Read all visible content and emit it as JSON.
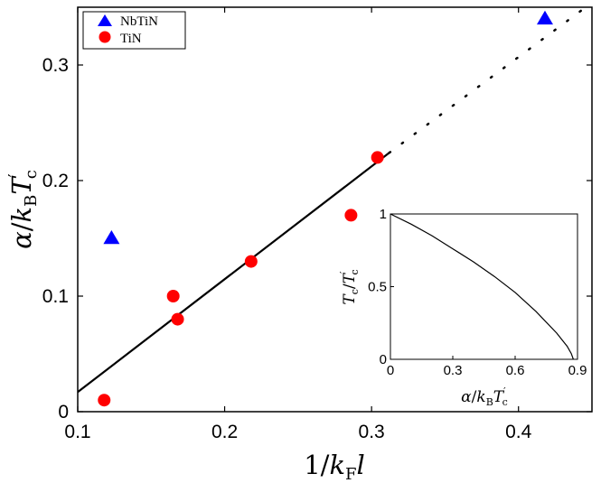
{
  "chart_data": [
    {
      "type": "scatter",
      "xlabel": "1/k_F l",
      "ylabel": "α/k_B T'_c",
      "xlim": [
        0.1,
        0.45
      ],
      "ylim": [
        0,
        0.35
      ],
      "x_ticks": [
        "0.1",
        "0.2",
        "0.3",
        "0.4"
      ],
      "y_ticks": [
        "0",
        "0.1",
        "0.2",
        "0.3"
      ],
      "legend": {
        "placement": "top-left",
        "entries": [
          "NbTiN",
          "TiN"
        ]
      },
      "series": [
        {
          "name": "NbTiN",
          "marker": "triangle",
          "color": "#0000ff",
          "points": [
            {
              "x": 0.123,
              "y": 0.15
            },
            {
              "x": 0.418,
              "y": 0.34
            }
          ]
        },
        {
          "name": "TiN",
          "marker": "circle",
          "color": "#ff0000",
          "points": [
            {
              "x": 0.118,
              "y": 0.01
            },
            {
              "x": 0.165,
              "y": 0.1
            },
            {
              "x": 0.168,
              "y": 0.08
            },
            {
              "x": 0.218,
              "y": 0.13
            },
            {
              "x": 0.286,
              "y": 0.17
            },
            {
              "x": 0.304,
              "y": 0.22
            }
          ]
        }
      ],
      "fit_line": {
        "solid": [
          {
            "x": 0.1,
            "y": 0.017
          },
          {
            "x": 0.312,
            "y": 0.224
          }
        ],
        "dotted": [
          {
            "x": 0.312,
            "y": 0.224
          },
          {
            "x": 0.45,
            "y": 0.354
          }
        ]
      }
    },
    {
      "type": "line",
      "inset": true,
      "xlabel": "α/k_B T'_c",
      "ylabel": "T_c/T'_c",
      "xlim": [
        0,
        0.9
      ],
      "ylim": [
        0,
        1
      ],
      "x_ticks": [
        "0",
        "0.3",
        "0.6",
        "0.9"
      ],
      "y_ticks": [
        "0",
        "0.5",
        "1"
      ],
      "curve": [
        {
          "x": 0.0,
          "y": 1.0
        },
        {
          "x": 0.1,
          "y": 0.93
        },
        {
          "x": 0.2,
          "y": 0.85
        },
        {
          "x": 0.3,
          "y": 0.76
        },
        {
          "x": 0.4,
          "y": 0.67
        },
        {
          "x": 0.5,
          "y": 0.57
        },
        {
          "x": 0.6,
          "y": 0.46
        },
        {
          "x": 0.7,
          "y": 0.33
        },
        {
          "x": 0.8,
          "y": 0.18
        },
        {
          "x": 0.85,
          "y": 0.09
        },
        {
          "x": 0.87,
          "y": 0.04
        },
        {
          "x": 0.88,
          "y": 0.0
        }
      ]
    }
  ]
}
